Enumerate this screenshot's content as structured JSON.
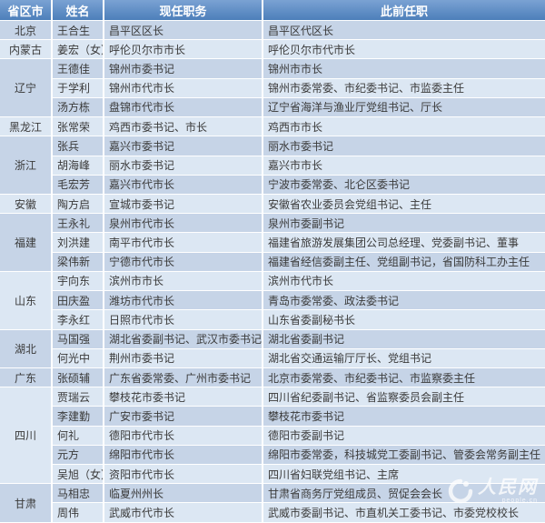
{
  "colors": {
    "header_top": "#7aa2d3",
    "header_bottom": "#4d7fba",
    "header_text": "#ffffff",
    "row_dark": "#c6d4e7",
    "row_light": "#dce7f3",
    "province_light": "#d3dfed",
    "text": "#3a3a3a"
  },
  "watermark": {
    "text": "人民网",
    "subtext": "people.cn"
  },
  "chart_data": {
    "type": "table",
    "columns": [
      "省区市",
      "姓名",
      "现任职务",
      "此前任职"
    ],
    "groups": [
      {
        "province": "北京",
        "shade": "dark",
        "rows": [
          {
            "name": "王合生",
            "current": "昌平区区长",
            "previous": "昌平区代区长"
          }
        ]
      },
      {
        "province": "内蒙古",
        "shade": "light",
        "rows": [
          {
            "name": "姜宏（女）",
            "current": "呼伦贝尔市市长",
            "previous": "呼伦贝尔市代市长"
          }
        ]
      },
      {
        "province": "辽宁",
        "shade": "light",
        "rows": [
          {
            "name": "王德佳",
            "current": "锦州市委书记",
            "previous": "锦州市市长"
          },
          {
            "name": "于学利",
            "current": "锦州市代市长",
            "previous": "锦州市委常委、市纪委书记、市监委主任"
          },
          {
            "name": "汤方栋",
            "current": "盘锦市代市长",
            "previous": "辽宁省海洋与渔业厅党组书记、厅长"
          }
        ]
      },
      {
        "province": "黑龙江",
        "shade": "dark",
        "rows": [
          {
            "name": "张常荣",
            "current": "鸡西市委书记、市长",
            "previous": "鸡西市市长"
          }
        ]
      },
      {
        "province": "浙江",
        "shade": "light",
        "rows": [
          {
            "name": "张兵",
            "current": "嘉兴市委书记",
            "previous": "丽水市委书记"
          },
          {
            "name": "胡海峰",
            "current": "丽水市委书记",
            "previous": "嘉兴市市长"
          },
          {
            "name": "毛宏芳",
            "current": "嘉兴市代市长",
            "previous": "宁波市委常委、北仑区委书记"
          }
        ]
      },
      {
        "province": "安徽",
        "shade": "light",
        "rows": [
          {
            "name": "陶方启",
            "current": "宣城市委书记",
            "previous": "安徽省农业委员会党组书记、主任"
          }
        ]
      },
      {
        "province": "福建",
        "shade": "light",
        "rows": [
          {
            "name": "王永礼",
            "current": "泉州市代市长",
            "previous": "泉州市委副书记"
          },
          {
            "name": "刘洪建",
            "current": "南平市代市长",
            "previous": "福建省旅游发展集团公司总经理、党委副书记、董事"
          },
          {
            "name": "梁伟新",
            "current": "宁德市代市长",
            "previous": "福建省经信委副主任、党组副书记，省国防科工办主任"
          }
        ]
      },
      {
        "province": "山东",
        "shade": "light",
        "rows": [
          {
            "name": "宇向东",
            "current": "滨州市市长",
            "previous": "滨州市代市长"
          },
          {
            "name": "田庆盈",
            "current": "潍坊市代市长",
            "previous": "青岛市委常委、政法委书记"
          },
          {
            "name": "李永红",
            "current": "日照市代市长",
            "previous": "山东省委副秘书长"
          }
        ]
      },
      {
        "province": "湖北",
        "shade": "dark",
        "rows": [
          {
            "name": "马国强",
            "current": "湖北省委副书记、武汉市委书记",
            "previous": "湖北省委副书记"
          },
          {
            "name": "何光中",
            "current": "荆州市委书记",
            "previous": "湖北省交通运输厅厅长、党组书记"
          }
        ]
      },
      {
        "province": "广东",
        "shade": "dark",
        "rows": [
          {
            "name": "张硕辅",
            "current": "广东省委常委、广州市委书记",
            "previous": "北京市委常委、市纪委书记、市监察委主任"
          }
        ]
      },
      {
        "province": "四川",
        "shade": "light",
        "rows": [
          {
            "name": "贾瑞云",
            "current": "攀枝花市委书记",
            "previous": "四川省纪委副书记、省监察委员会副主任"
          },
          {
            "name": "李建勤",
            "current": "广安市委书记",
            "previous": "攀枝花市委书记"
          },
          {
            "name": "何礼",
            "current": "德阳市代市长",
            "previous": "德阳市委副书记"
          },
          {
            "name": "元方",
            "current": "绵阳市代市长",
            "previous": "绵阳市委常委，科技城党工委副书记、管委会常务副主任"
          },
          {
            "name": "吴旭（女）",
            "current": "资阳市代市长",
            "previous": "四川省妇联党组书记、主席"
          }
        ]
      },
      {
        "province": "甘肃",
        "shade": "dark",
        "rows": [
          {
            "name": "马相忠",
            "current": "临夏州州长",
            "previous": "甘肃省商务厅党组成员、贸促会会长"
          },
          {
            "name": "周伟",
            "current": "武威市代市长",
            "previous": "武威市委副书记、市直机关工委书记、市委党校校长"
          }
        ]
      }
    ]
  }
}
